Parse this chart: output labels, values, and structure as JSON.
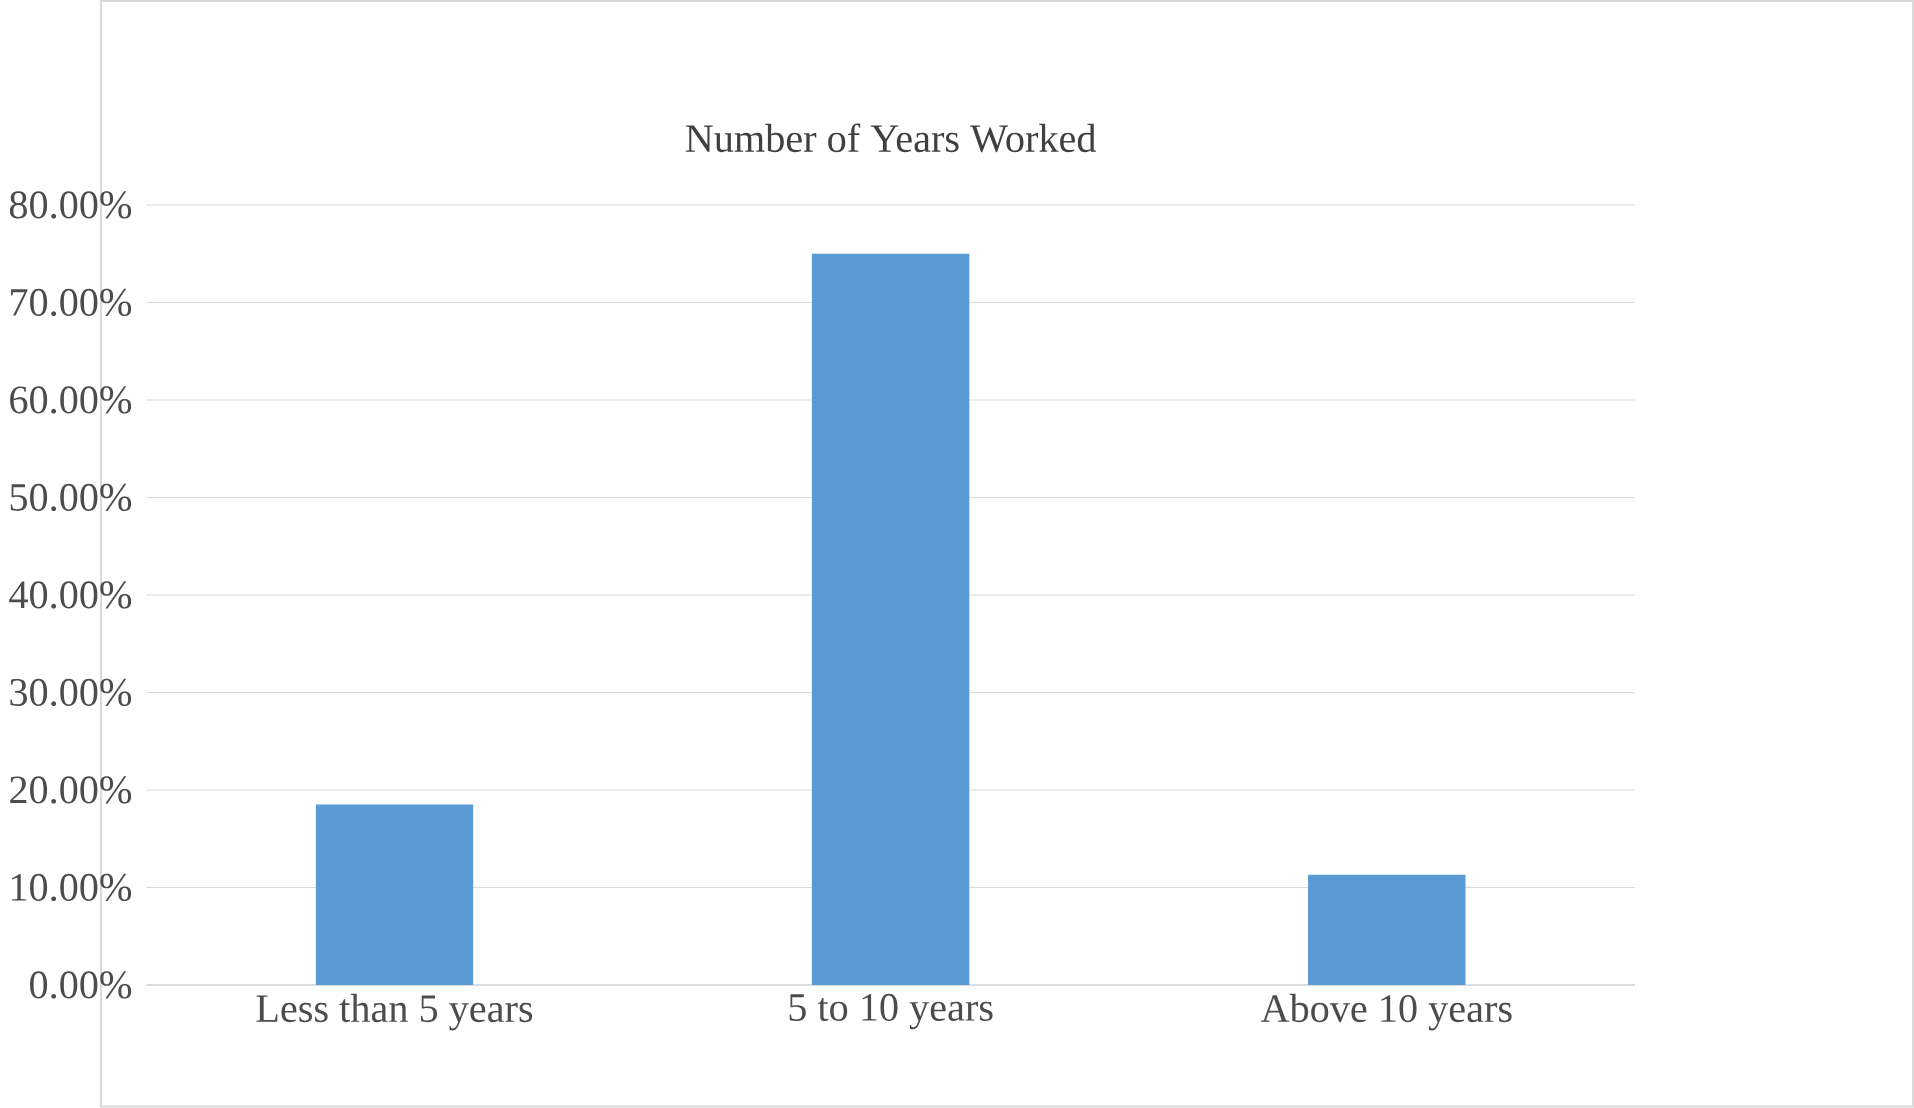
{
  "chart_data": {
    "type": "bar",
    "title": "Number of Years Worked",
    "categories": [
      "Less than 5 years",
      "5 to 10 years",
      "Above 10 years"
    ],
    "values": [
      18.5,
      75,
      11.3
    ],
    "color": "#5b9bd5",
    "ylim": [
      0,
      80
    ],
    "yticks": [
      {
        "value": 0,
        "label": "0.00%"
      },
      {
        "value": 10,
        "label": "10.00%"
      },
      {
        "value": 20,
        "label": "20.00%"
      },
      {
        "value": 30,
        "label": "30.00%"
      },
      {
        "value": 40,
        "label": "40.00%"
      },
      {
        "value": 50,
        "label": "50.00%"
      },
      {
        "value": 60,
        "label": "60.00%"
      },
      {
        "value": 70,
        "label": "70.00%"
      },
      {
        "value": 80,
        "label": "80.00%"
      }
    ],
    "grid": "y"
  }
}
